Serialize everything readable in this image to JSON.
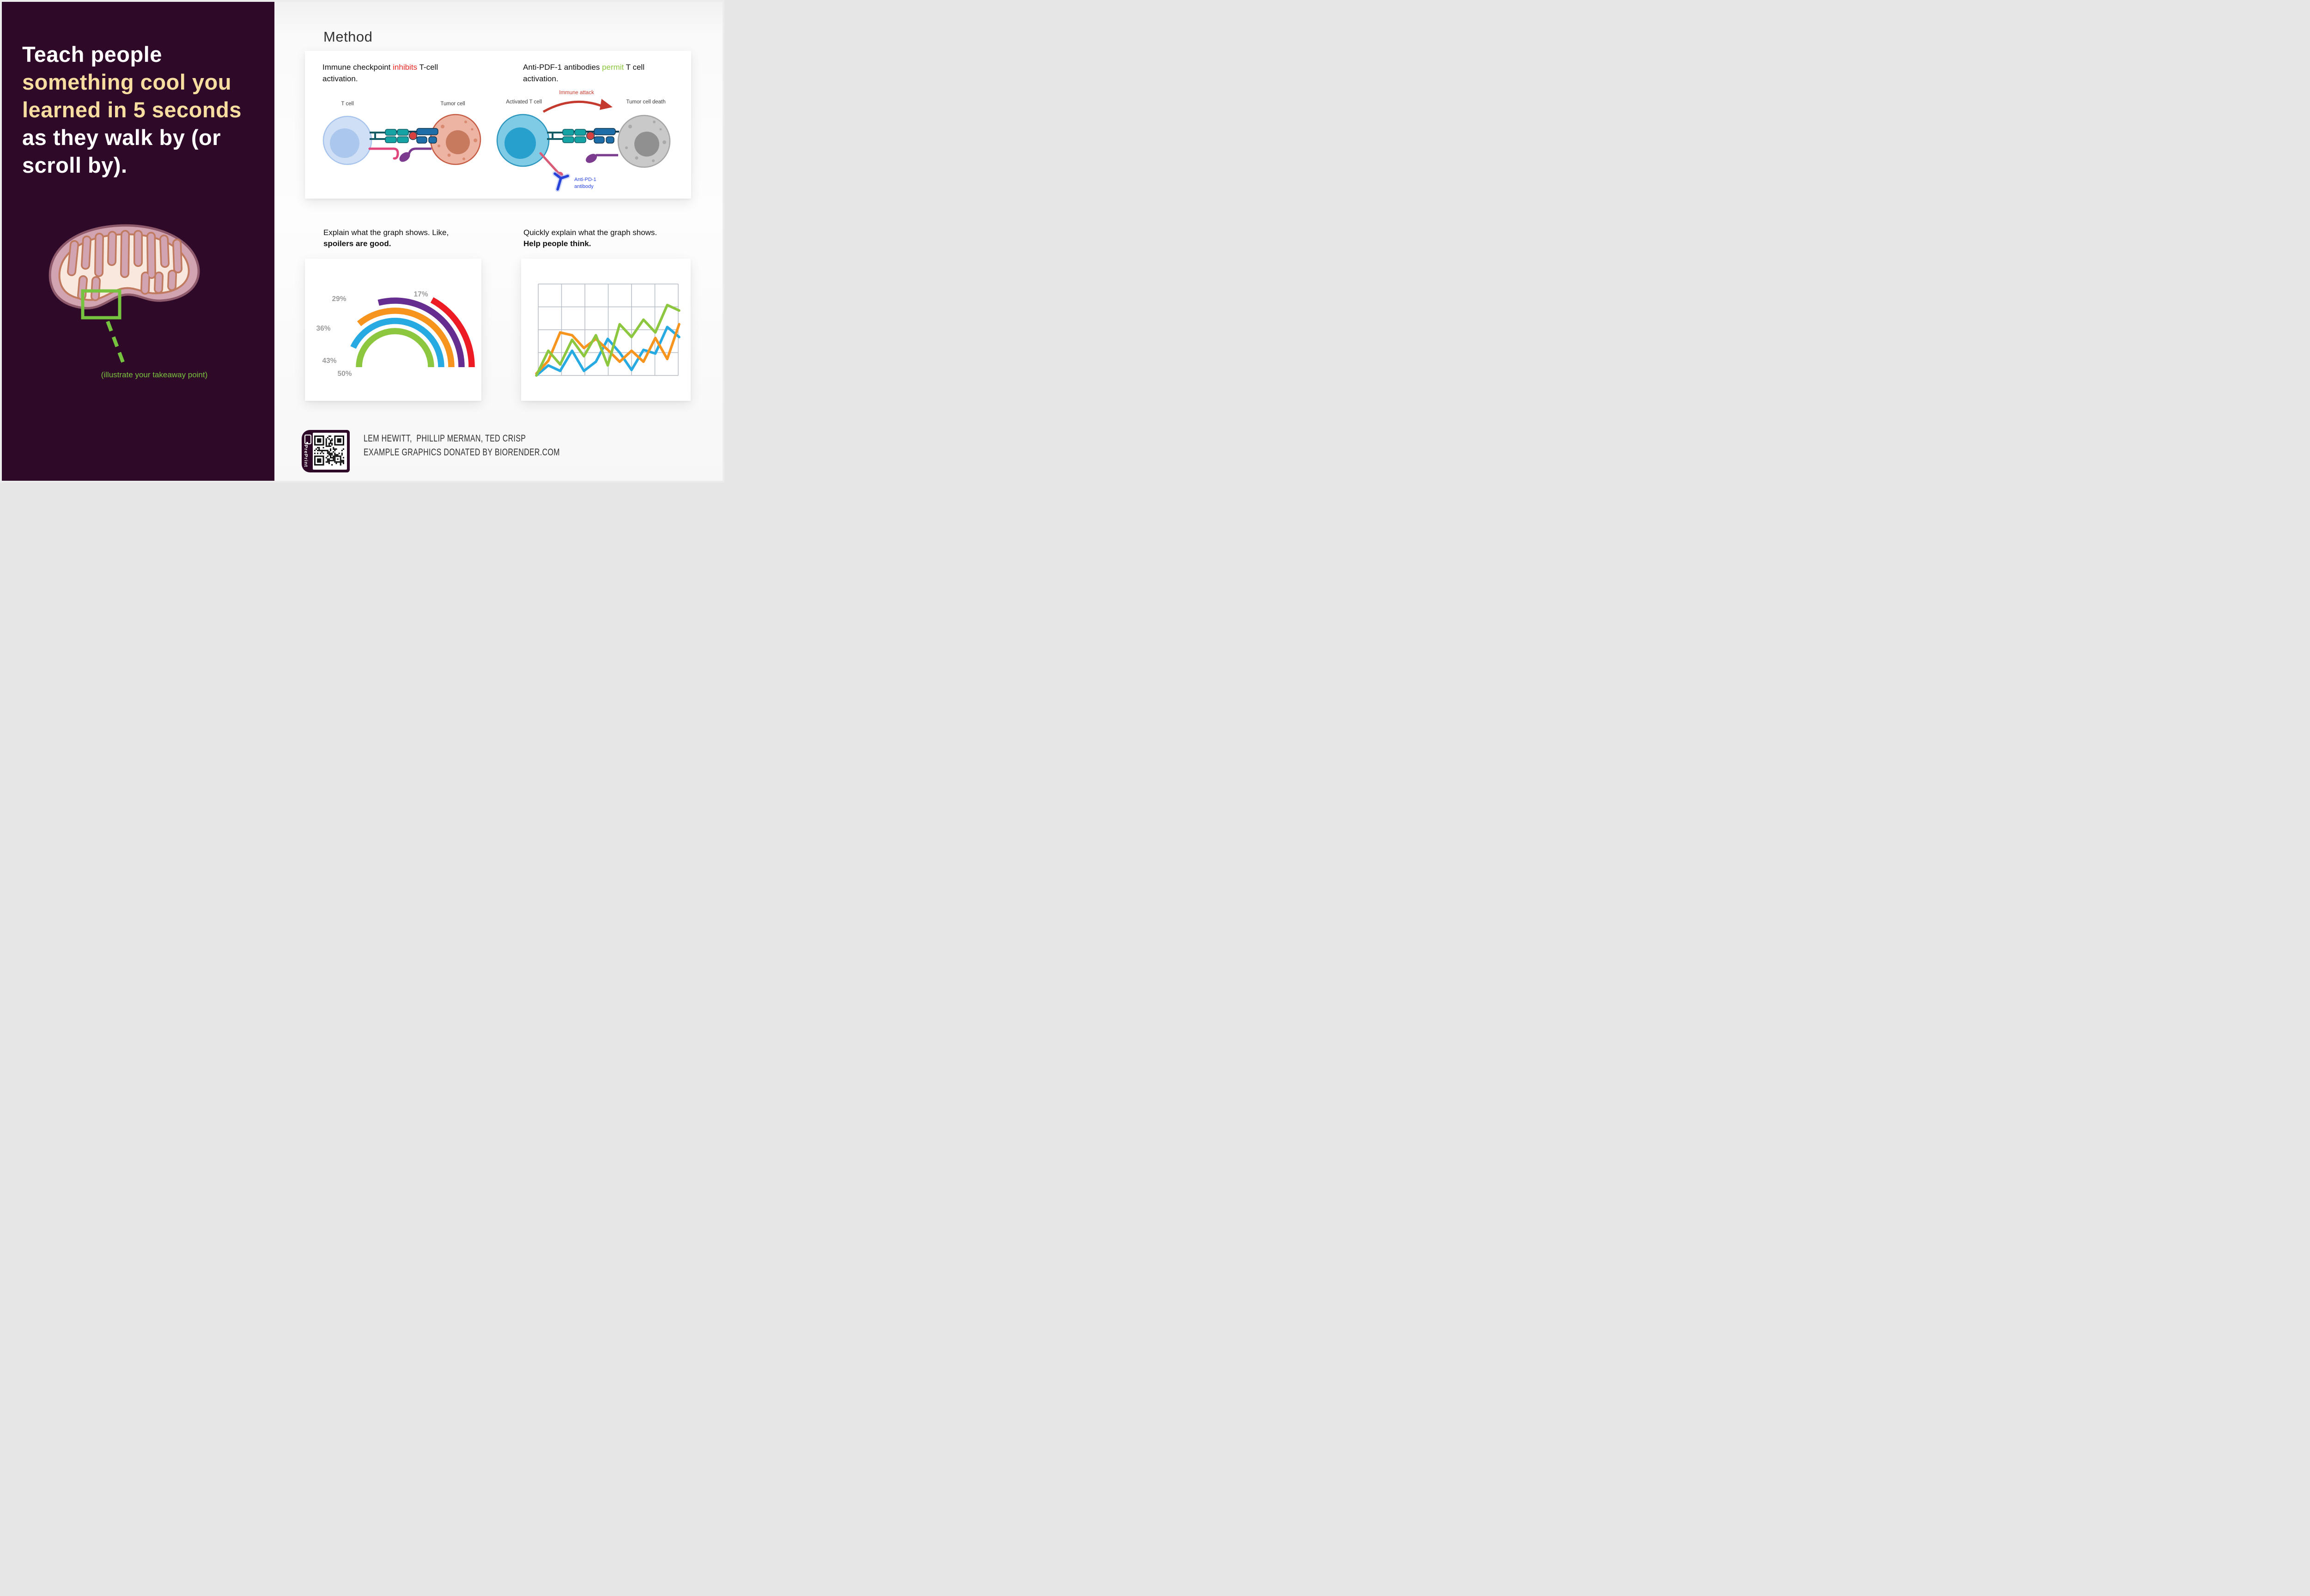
{
  "left_panel": {
    "title_lines": [
      {
        "text": "Teach people",
        "color": "#ffffff"
      },
      {
        "text": "something cool you",
        "color": "#f7dea0"
      },
      {
        "text": "learned in 5 seconds",
        "color": "#f7dea0"
      },
      {
        "text": "as they walk by (or",
        "color": "#ffffff"
      },
      {
        "text": "scroll by).",
        "color": "#ffffff"
      }
    ],
    "takeaway_note": "(illustrate your takeaway point)"
  },
  "method": {
    "heading": "Method",
    "captions": {
      "left_pre": "Immune checkpoint ",
      "left_highlight": "inhibits",
      "left_post": " T-cell activation.",
      "right_pre": "Anti-PDF-1 antibodies ",
      "right_highlight": "permit",
      "right_post": " T cell activation."
    },
    "diagram_left": {
      "t_cell": "T cell",
      "tumor": "Tumor cell"
    },
    "diagram_right": {
      "t_cell": "Activated T cell",
      "attack": "Immune attack",
      "tumor": "Tumor cell death",
      "antibody_line1": "Anti-PD-1",
      "antibody_line2": "antibody"
    }
  },
  "graph_captions": {
    "left_line1": "Explain what the graph shows. Like,",
    "left_line2": "spoilers are good.",
    "right_line1": "Quickly explain what the graph shows.",
    "right_line2": "Help people think."
  },
  "chart_data": [
    {
      "type": "radial_bar",
      "title": "",
      "units": "percent",
      "anchor": "all arcs end at right horizontal baseline and sweep counterclockwise by value/100 of a full turn",
      "values": [
        {
          "label": "50%",
          "value": 50,
          "color": "#8dc63f"
        },
        {
          "label": "43%",
          "value": 43,
          "color": "#27aae1"
        },
        {
          "label": "36%",
          "value": 36,
          "color": "#f7941d"
        },
        {
          "label": "29%",
          "value": 29,
          "color": "#662d91"
        },
        {
          "label": "17%",
          "value": 17,
          "color": "#ed1c24"
        }
      ],
      "label_color": "#9b9b9b",
      "legend": "none",
      "grid": false
    },
    {
      "type": "line",
      "title": "",
      "xlabel": "",
      "ylabel": "",
      "x": [
        0,
        1,
        2,
        3,
        4,
        5,
        6,
        7,
        8,
        9,
        10,
        11,
        12
      ],
      "ylim": [
        0,
        100
      ],
      "grid": {
        "cols": 6,
        "rows": 4,
        "color": "#b5bcc4"
      },
      "axis_tick_labels": "none",
      "legend": "none",
      "series": [
        {
          "name": "blue",
          "color": "#27aae1",
          "values": [
            0,
            11,
            5,
            27,
            5,
            15,
            40,
            25,
            6,
            28,
            24,
            53,
            42
          ]
        },
        {
          "name": "orange",
          "color": "#f7941d",
          "values": [
            2,
            16,
            47,
            44,
            30,
            40,
            28,
            15,
            27,
            15,
            41,
            18,
            56
          ]
        },
        {
          "name": "green",
          "color": "#8dc63f",
          "values": [
            0,
            27,
            12,
            39,
            21,
            44,
            11,
            56,
            42,
            61,
            47,
            77,
            71
          ]
        }
      ]
    }
  ],
  "footer": {
    "qr_tag": "PrePrint",
    "authors": "LEM HEWITT,  PHILLIP MERMAN, TED CRISP",
    "credit": "EXAMPLE GRAPHICS DONATED BY BIORENDER.COM"
  },
  "colors": {
    "panel_bg": "#2e0a28",
    "title_cream": "#f7dea0",
    "accent_green": "#76c33f",
    "highlight_red": "#e52421",
    "highlight_green": "#8cc63f",
    "arc_purple": "#662d91",
    "arc_orange": "#f7941d",
    "arc_blue": "#27aae1",
    "arc_green": "#8dc63f",
    "arc_red": "#ed1c24"
  }
}
